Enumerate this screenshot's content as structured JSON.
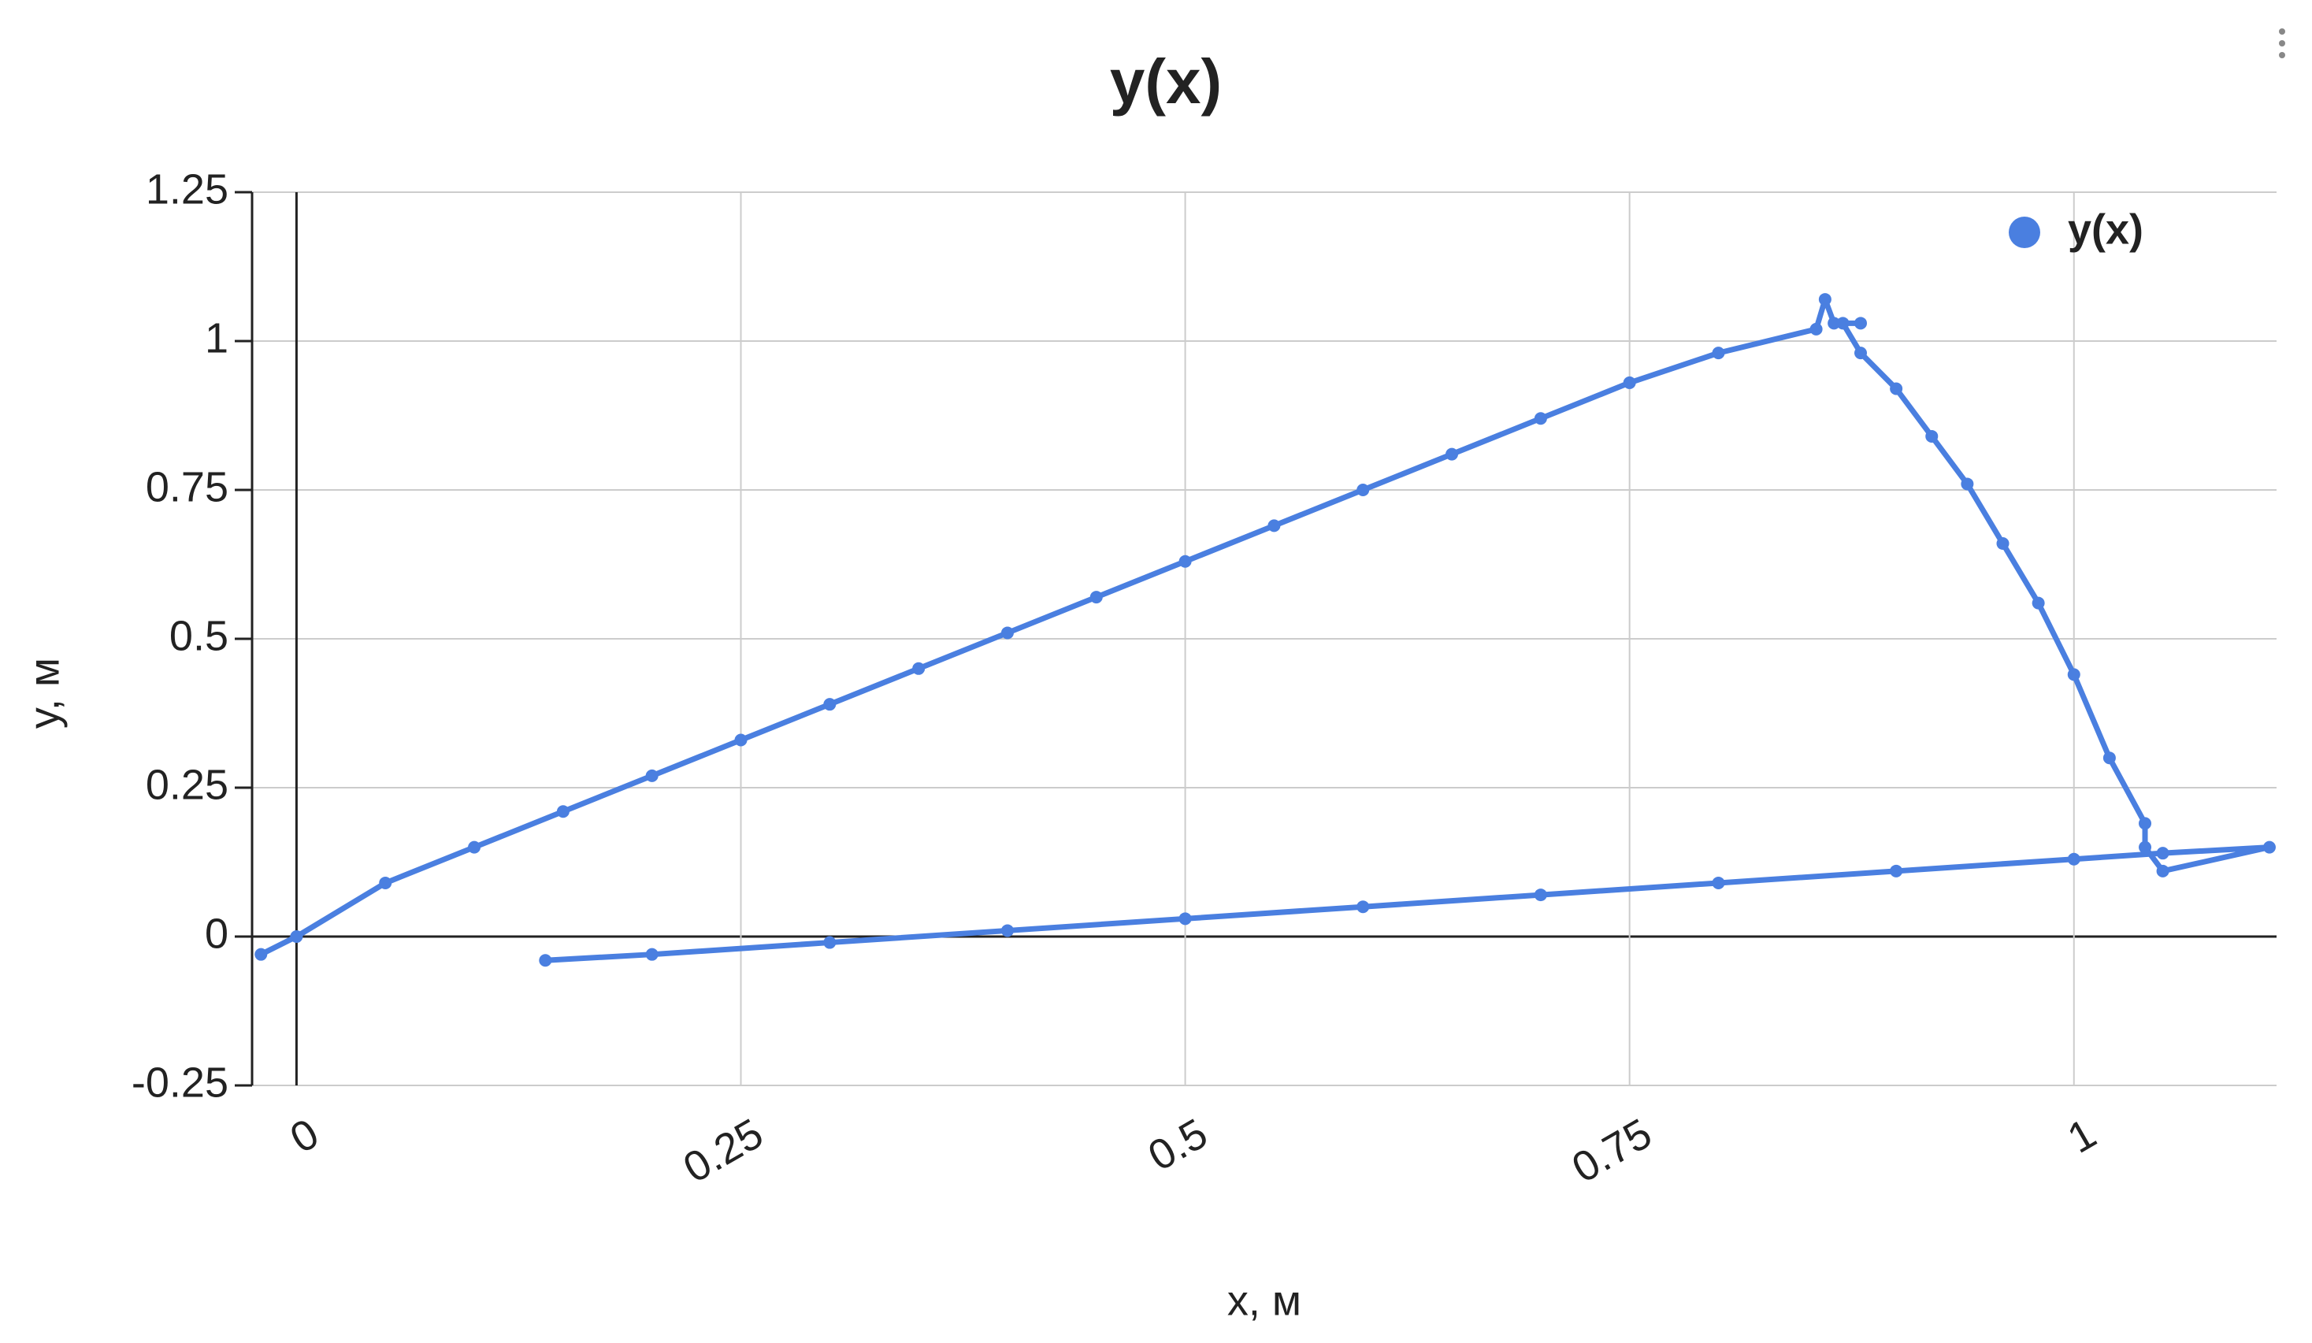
{
  "chart_data": {
    "type": "line",
    "title": "y(x)",
    "x_label": "x, м",
    "y_label": "y, м",
    "x": [
      -0.02,
      0,
      0.05,
      0.1,
      0.15,
      0.2,
      0.25,
      0.3,
      0.35,
      0.4,
      0.45,
      0.5,
      0.55,
      0.6,
      0.65,
      0.7,
      0.75,
      0.8,
      0.855,
      0.86,
      0.865,
      0.88,
      0.87,
      0.88,
      0.9,
      0.92,
      0.94,
      0.96,
      0.98,
      1.0,
      1.02,
      1.04,
      1.04,
      1.05,
      1.11,
      1.05,
      1.0,
      0.9,
      0.8,
      0.7,
      0.6,
      0.5,
      0.4,
      0.3,
      0.2,
      0.14
    ],
    "series": [
      {
        "name": "y(x)",
        "color": "#4a7fe0",
        "values": [
          -0.03,
          0.0,
          0.09,
          0.15,
          0.21,
          0.27,
          0.33,
          0.39,
          0.45,
          0.51,
          0.57,
          0.63,
          0.69,
          0.75,
          0.81,
          0.87,
          0.93,
          0.98,
          1.02,
          1.07,
          1.03,
          1.03,
          1.03,
          0.98,
          0.92,
          0.84,
          0.76,
          0.66,
          0.56,
          0.44,
          0.3,
          0.19,
          0.15,
          0.11,
          0.15,
          0.14,
          0.13,
          0.11,
          0.09,
          0.07,
          0.05,
          0.03,
          0.01,
          -0.01,
          -0.03,
          -0.04
        ]
      }
    ],
    "xlim": [
      -0.025,
      1.114
    ],
    "ylim": [
      -0.25,
      1.25
    ],
    "xticks": [
      0,
      0.25,
      0.5,
      0.75,
      1
    ],
    "yticks": [
      -0.25,
      0,
      0.25,
      0.5,
      0.75,
      1,
      1.25
    ],
    "grid": true,
    "legend": "top-right"
  }
}
